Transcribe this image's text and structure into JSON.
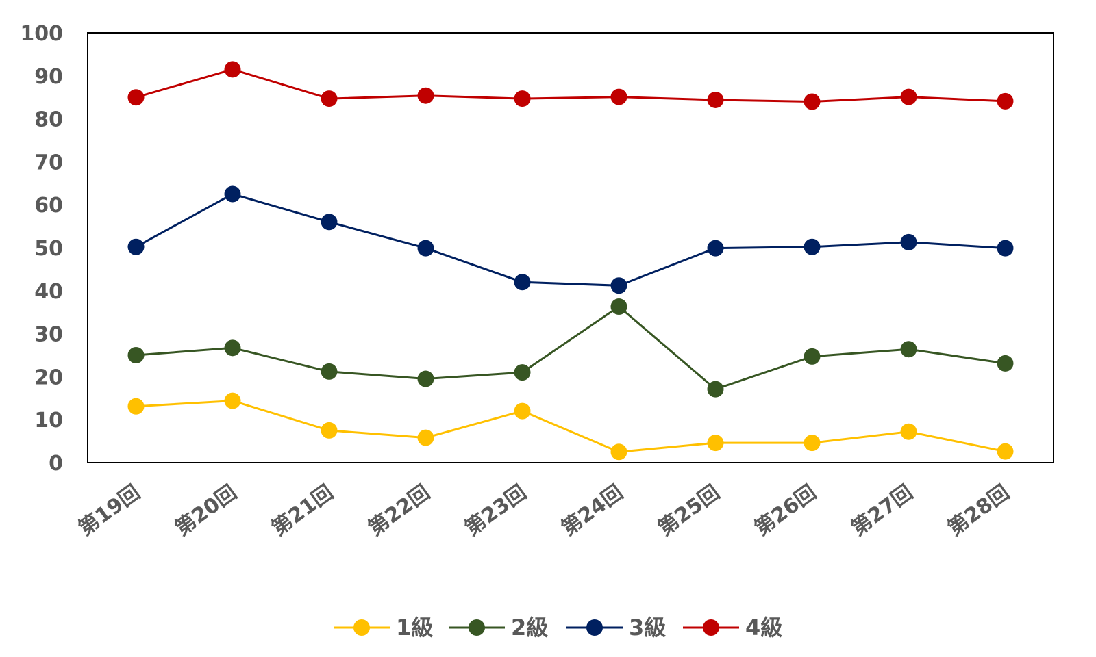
{
  "chart_data": {
    "type": "line",
    "title": "",
    "xlabel": "",
    "ylabel": "",
    "categories": [
      "第19回",
      "第20回",
      "第21回",
      "第22回",
      "第23回",
      "第24回",
      "第25回",
      "第26回",
      "第27回",
      "第28回"
    ],
    "yticks": [
      0,
      10,
      20,
      30,
      40,
      50,
      60,
      70,
      80,
      90,
      100
    ],
    "ylim": [
      0,
      100
    ],
    "grid": false,
    "legend_position": "bottom",
    "series": [
      {
        "name": "1級",
        "color": "#FFC000",
        "values": [
          13.1,
          14.4,
          7.5,
          5.8,
          12.0,
          2.5,
          4.6,
          4.6,
          7.2,
          2.6
        ]
      },
      {
        "name": "2級",
        "color": "#375623",
        "values": [
          25.0,
          26.7,
          21.2,
          19.5,
          21.0,
          36.3,
          17.1,
          24.7,
          26.4,
          23.1
        ]
      },
      {
        "name": "3級",
        "color": "#002060",
        "values": [
          50.2,
          62.5,
          56.0,
          49.9,
          42.0,
          41.2,
          49.9,
          50.2,
          51.3,
          49.9
        ]
      },
      {
        "name": "4級",
        "color": "#C00000",
        "values": [
          85.0,
          91.5,
          84.7,
          85.4,
          84.7,
          85.1,
          84.4,
          84.0,
          85.1,
          84.1
        ]
      }
    ]
  }
}
